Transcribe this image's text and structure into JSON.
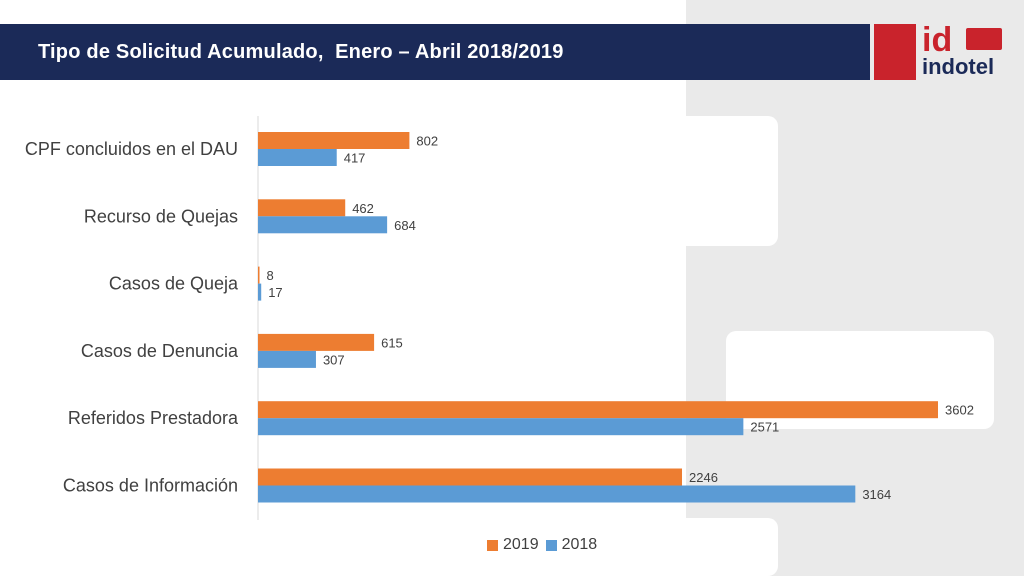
{
  "header": {
    "title": "Tipo de Solicitud Acumulado,  Enero – Abril 2018/2019"
  },
  "logo": {
    "brand_id": "id",
    "brand_name": "indotel",
    "color_primary": "#c9232c",
    "color_secondary": "#1b2a58"
  },
  "colors": {
    "series_2019": "#ed7d31",
    "series_2018": "#5b9bd5",
    "header_bg": "#1b2a58"
  },
  "chart_data": {
    "type": "bar",
    "orientation": "horizontal",
    "categories": [
      "CPF concluidos en el DAU",
      "Recurso de Quejas",
      "Casos de Queja",
      "Casos de Denuncia",
      "Referidos Prestadora",
      "Casos de Información"
    ],
    "series": [
      {
        "name": "2019",
        "color": "#ed7d31",
        "values": [
          802,
          462,
          8,
          615,
          3602,
          2246
        ]
      },
      {
        "name": "2018",
        "color": "#5b9bd5",
        "values": [
          417,
          684,
          17,
          307,
          2571,
          3164
        ]
      }
    ],
    "data_labels": true,
    "xlim": [
      0,
      3800
    ],
    "grid": false,
    "legend_position": "bottom"
  }
}
